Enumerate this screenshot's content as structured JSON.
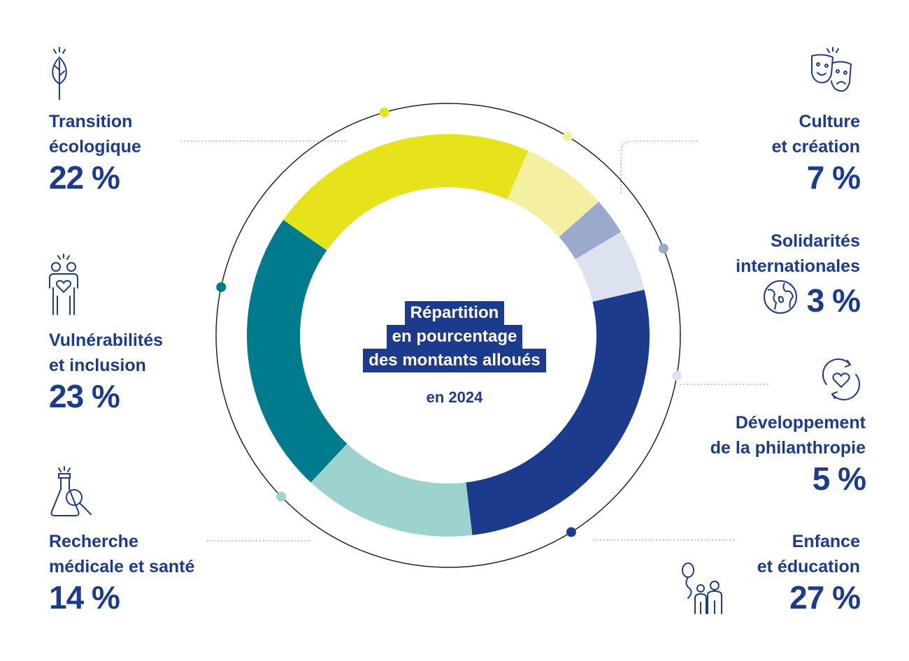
{
  "center": {
    "title_lines": [
      "Répartition",
      "en pourcentage",
      "des montants alloués"
    ],
    "subtitle": "en 2024"
  },
  "chart_data": {
    "type": "pie",
    "variant": "donut",
    "title": "Répartition en pourcentage des montants alloués en 2024",
    "categories": [
      "Transition écologique",
      "Culture et création",
      "Solidarités internationales",
      "Développement de la philanthropie",
      "Enfance et éducation",
      "Recherche médicale et santé",
      "Vulnérabilités et inclusion"
    ],
    "values": [
      22,
      7,
      3,
      5,
      27,
      14,
      23
    ],
    "value_labels": [
      "22 %",
      "7 %",
      "3 %",
      "5 %",
      "27 %",
      "14 %",
      "23 %"
    ],
    "colors": [
      "#e6e21c",
      "#f4f0a0",
      "#9aa9cc",
      "#dde2f0",
      "#1d3b8c",
      "#9dd3cf",
      "#007b8e"
    ],
    "marker_colors": [
      "#e6e21c",
      "#f4f0a0",
      "#9aa9cc",
      "#dde2f0",
      "#1d3b8c",
      "#9dd3cf",
      "#007b8e"
    ]
  },
  "labels": {
    "transition": {
      "name": "Transition\nécologique",
      "pct": "22 %",
      "icon": "leaf-icon"
    },
    "culture": {
      "name": "Culture\net création",
      "pct": "7 %",
      "icon": "theater-masks-icon"
    },
    "solidarites": {
      "name": "Solidarités\ninternationales",
      "pct": "3 %",
      "icon": "globe-icon"
    },
    "philanthropie": {
      "name": "Développement\nde la philanthropie",
      "pct": "5 %",
      "icon": "heart-cycle-icon"
    },
    "enfance": {
      "name": "Enfance\net éducation",
      "pct": "27 %",
      "icon": "family-balloon-icon"
    },
    "recherche": {
      "name": "Recherche\nmédicale et santé",
      "pct": "14 %",
      "icon": "flask-magnifier-icon"
    },
    "vulnerabilites": {
      "name": "Vulnérabilités\net inclusion",
      "pct": "23 %",
      "icon": "people-heart-icon"
    }
  },
  "colors": {
    "navy": "#1d3b8c",
    "line": "#222222"
  }
}
